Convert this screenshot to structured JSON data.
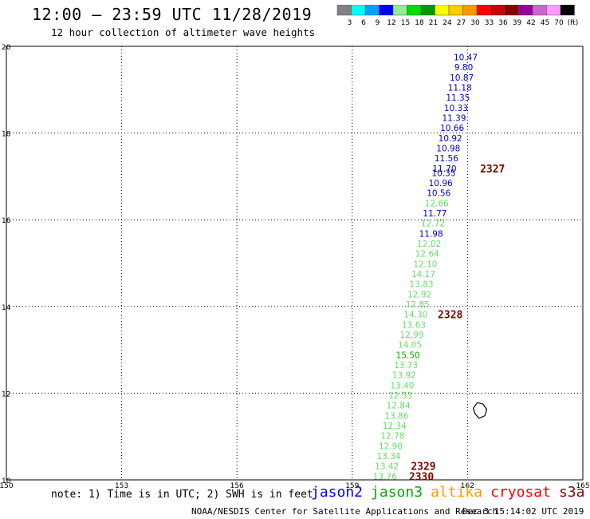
{
  "header": {
    "title": "12:00 – 23:59 UTC 11/28/2019",
    "subtitle": "12 hour collection of altimeter wave heights"
  },
  "colorbar": {
    "ticks": [
      "3",
      "6",
      "9",
      "12",
      "15",
      "18",
      "21",
      "24",
      "27",
      "30",
      "33",
      "36",
      "39",
      "42",
      "45",
      "70",
      "(ft)"
    ],
    "colors": [
      "#808080",
      "#00ffff",
      "#00a0ff",
      "#0000ff",
      "#90ee90",
      "#00dd00",
      "#009900",
      "#ffff00",
      "#ffcc00",
      "#ff9900",
      "#ff0000",
      "#cc0000",
      "#880000",
      "#990099",
      "#cc66cc",
      "#ff99ff",
      "#000000"
    ]
  },
  "chart_data": {
    "type": "scatter",
    "xlim": [
      150,
      165
    ],
    "ylim": [
      10,
      20
    ],
    "x_ticks": [
      "150",
      "153",
      "156",
      "159",
      "162",
      "165"
    ],
    "y_ticks": [
      "10",
      "12",
      "14",
      "16",
      "18",
      "20"
    ],
    "grid": true,
    "points": [
      {
        "lon": 161.95,
        "lat": 19.75,
        "v": "10.47",
        "color": "#0000cc"
      },
      {
        "lon": 161.9,
        "lat": 19.52,
        "v": "9.80",
        "color": "#0000cc"
      },
      {
        "lon": 161.85,
        "lat": 19.28,
        "v": "10.87",
        "color": "#0000cc"
      },
      {
        "lon": 161.8,
        "lat": 19.05,
        "v": "11.18",
        "color": "#0000cc"
      },
      {
        "lon": 161.75,
        "lat": 18.82,
        "v": "11.35",
        "color": "#0000cc"
      },
      {
        "lon": 161.7,
        "lat": 18.58,
        "v": "10.33",
        "color": "#0000cc"
      },
      {
        "lon": 161.65,
        "lat": 18.35,
        "v": "11.39",
        "color": "#0000cc"
      },
      {
        "lon": 161.6,
        "lat": 18.12,
        "v": "10.66",
        "color": "#0000cc"
      },
      {
        "lon": 161.55,
        "lat": 17.88,
        "v": "10.92",
        "color": "#0000cc"
      },
      {
        "lon": 161.5,
        "lat": 17.65,
        "v": "10.98",
        "color": "#0000cc"
      },
      {
        "lon": 161.45,
        "lat": 17.42,
        "v": "11.56",
        "color": "#0000cc"
      },
      {
        "lon": 161.4,
        "lat": 17.18,
        "v": "11.70",
        "color": "#0000cc"
      },
      {
        "lon": 161.38,
        "lat": 17.08,
        "v": "10.35",
        "color": "#0000cc"
      },
      {
        "lon": 161.3,
        "lat": 16.85,
        "v": "10.96",
        "color": "#0000cc"
      },
      {
        "lon": 161.25,
        "lat": 16.62,
        "v": "10.56",
        "color": "#0000cc"
      },
      {
        "lon": 161.2,
        "lat": 16.38,
        "v": "12.66",
        "color": "#66dd66"
      },
      {
        "lon": 161.15,
        "lat": 16.15,
        "v": "11.77",
        "color": "#0000cc"
      },
      {
        "lon": 161.1,
        "lat": 15.92,
        "v": "12.72",
        "color": "#66dd66"
      },
      {
        "lon": 161.05,
        "lat": 15.68,
        "v": "11.98",
        "color": "#0000cc"
      },
      {
        "lon": 161.0,
        "lat": 15.45,
        "v": "12.02",
        "color": "#66dd66"
      },
      {
        "lon": 160.95,
        "lat": 15.22,
        "v": "12.64",
        "color": "#66dd66"
      },
      {
        "lon": 160.9,
        "lat": 14.98,
        "v": "12.10",
        "color": "#66dd66"
      },
      {
        "lon": 160.85,
        "lat": 14.75,
        "v": "14.17",
        "color": "#66dd66"
      },
      {
        "lon": 160.8,
        "lat": 14.52,
        "v": "13.83",
        "color": "#66dd66"
      },
      {
        "lon": 160.75,
        "lat": 14.28,
        "v": "12.92",
        "color": "#66dd66"
      },
      {
        "lon": 160.7,
        "lat": 14.05,
        "v": "12.85",
        "color": "#66dd66"
      },
      {
        "lon": 160.65,
        "lat": 13.82,
        "v": "14.30",
        "color": "#66dd66"
      },
      {
        "lon": 160.6,
        "lat": 13.58,
        "v": "13.63",
        "color": "#66dd66"
      },
      {
        "lon": 160.55,
        "lat": 13.35,
        "v": "12.99",
        "color": "#66dd66"
      },
      {
        "lon": 160.5,
        "lat": 13.12,
        "v": "14.05",
        "color": "#66dd66"
      },
      {
        "lon": 160.45,
        "lat": 12.88,
        "v": "15.50",
        "color": "#00aa00"
      },
      {
        "lon": 160.4,
        "lat": 12.65,
        "v": "13.73",
        "color": "#66dd66"
      },
      {
        "lon": 160.35,
        "lat": 12.42,
        "v": "13.92",
        "color": "#66dd66"
      },
      {
        "lon": 160.3,
        "lat": 12.18,
        "v": "13.40",
        "color": "#66dd66"
      },
      {
        "lon": 160.25,
        "lat": 11.95,
        "v": "12.53",
        "color": "#66dd66"
      },
      {
        "lon": 160.2,
        "lat": 11.72,
        "v": "12.84",
        "color": "#66dd66"
      },
      {
        "lon": 160.15,
        "lat": 11.48,
        "v": "13.86",
        "color": "#66dd66"
      },
      {
        "lon": 160.1,
        "lat": 11.25,
        "v": "12.34",
        "color": "#66dd66"
      },
      {
        "lon": 160.05,
        "lat": 11.02,
        "v": "12.78",
        "color": "#66dd66"
      },
      {
        "lon": 160.0,
        "lat": 10.78,
        "v": "12.90",
        "color": "#66dd66"
      },
      {
        "lon": 159.95,
        "lat": 10.55,
        "v": "13.34",
        "color": "#66dd66"
      },
      {
        "lon": 159.9,
        "lat": 10.32,
        "v": "13.42",
        "color": "#66dd66"
      },
      {
        "lon": 159.85,
        "lat": 10.08,
        "v": "13.76",
        "color": "#66dd66"
      }
    ],
    "time_labels": [
      {
        "lon": 162.65,
        "lat": 17.18,
        "text": "2327"
      },
      {
        "lon": 161.55,
        "lat": 13.82,
        "text": "2328"
      },
      {
        "lon": 160.85,
        "lat": 10.32,
        "text": "2329"
      },
      {
        "lon": 160.8,
        "lat": 10.08,
        "text": "2330"
      }
    ],
    "coastline": [
      [
        162.25,
        11.78
      ],
      [
        162.4,
        11.75
      ],
      [
        162.5,
        11.62
      ],
      [
        162.45,
        11.48
      ],
      [
        162.3,
        11.42
      ],
      [
        162.2,
        11.52
      ],
      [
        162.15,
        11.65
      ],
      [
        162.25,
        11.78
      ]
    ]
  },
  "footer": {
    "note": "note: 1) Time is in UTC; 2) SWH is in feet",
    "legend": [
      {
        "label": "jason2",
        "color": "#0000ff"
      },
      {
        "label": "jason3",
        "color": "#00aa00"
      },
      {
        "label": "altika",
        "color": "#ff9900"
      },
      {
        "label": "cryosat",
        "color": "#ff0000"
      },
      {
        "label": "s3a",
        "color": "#880000"
      }
    ],
    "credit": "NOAA/NESDIS Center for Satellite Applications and Research",
    "timestamp": "Dec  3 15:14:02 UTC 2019"
  }
}
